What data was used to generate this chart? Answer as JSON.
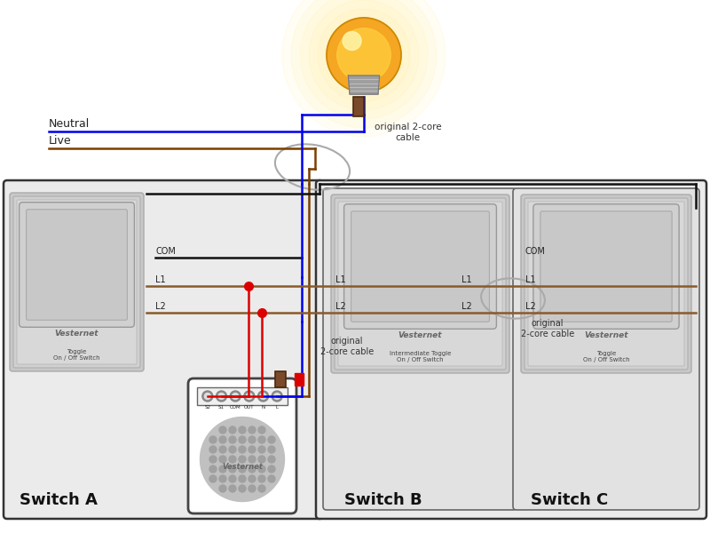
{
  "bg_color": "#ffffff",
  "wire_blue": "#0000ee",
  "wire_brown": "#7B3F00",
  "wire_black": "#111111",
  "wire_red": "#dd0000",
  "wire_l1l2": "#8B5A2B",
  "connector_brown": "#7B4A2A",
  "panel_fill": "#ebebeb",
  "panel_border": "#555555",
  "switch_outer": "#d8d8d8",
  "switch_inner": "#e4e4e4",
  "switch_btn": "#cccccc",
  "switch_btn_border": "#aaaaaa",
  "nano_fill": "#ffffff",
  "nano_circle": "#c0c0c0",
  "nano_dot": "#a0a0a0",
  "label_neutral": "Neutral",
  "label_live": "Live",
  "label_cable_top": "original 2-core\ncable",
  "label_cable_mid": "original\n2-core cable",
  "label_cable_right": "original\n2-core cable",
  "label_switch_a": "Switch A",
  "label_switch_b": "Switch B",
  "label_switch_c": "Switch C",
  "label_vesternet": "Vesternet",
  "label_toggle": "Toggle\nOn / Off Switch",
  "label_intermediate": "Intermediate Toggle\nOn / Off Switch",
  "nano_terminals": [
    "S2",
    "S1",
    "COM",
    "OUT",
    "N",
    "L"
  ]
}
